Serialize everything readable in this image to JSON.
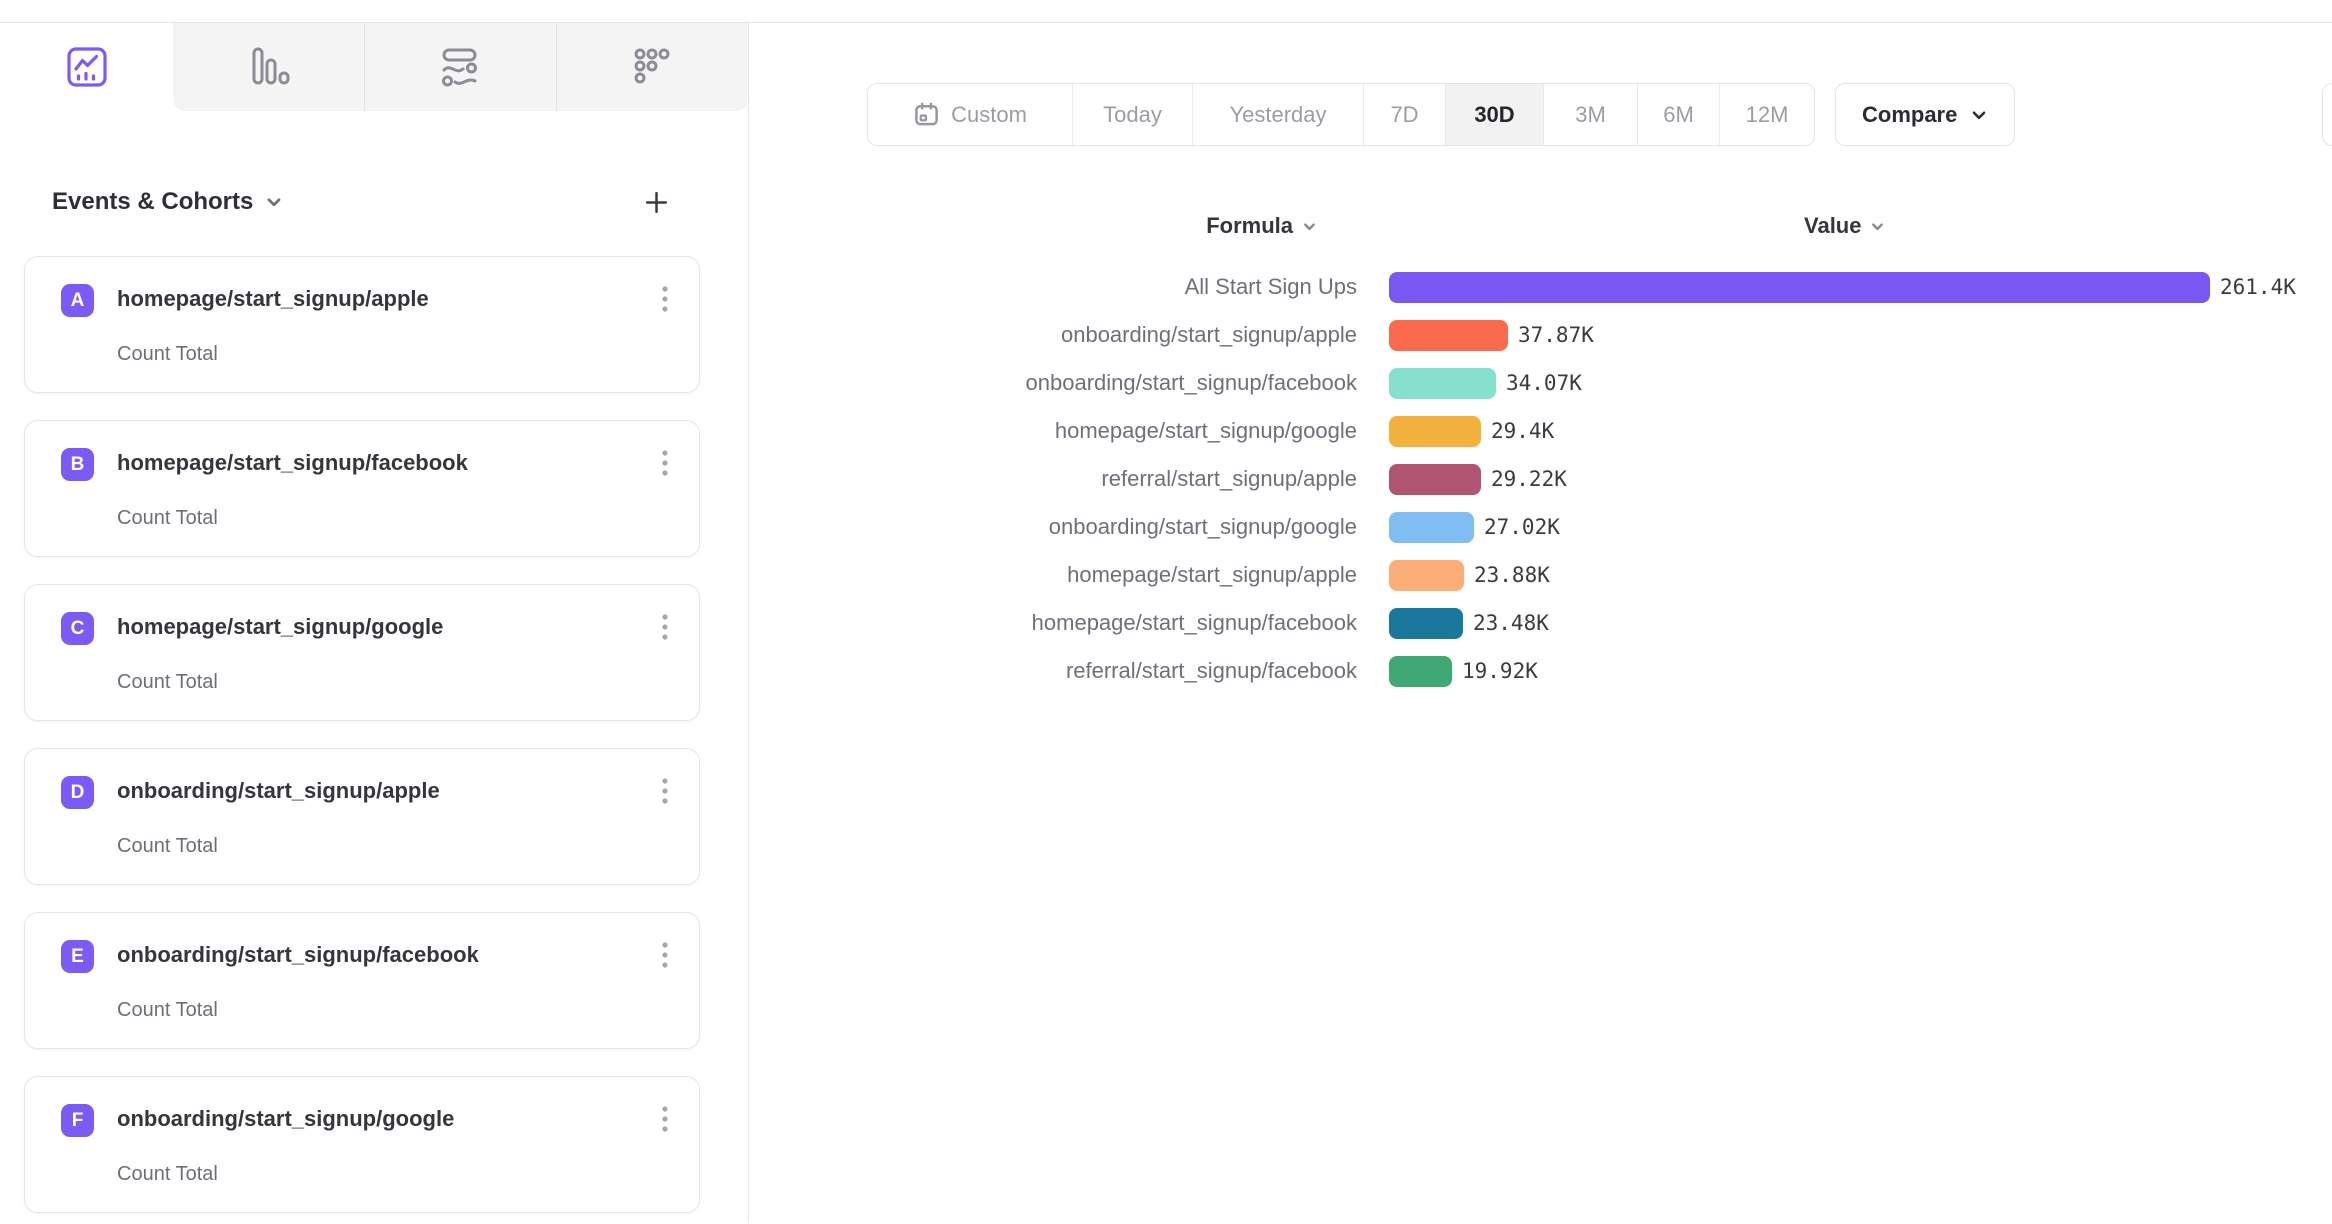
{
  "theme": {
    "accent": "#7B5AF5",
    "border": "#E6E6E9",
    "tab_strip_bg": "#F4F4F5",
    "active_segment_bg": "#F2F2F3",
    "muted_text": "#9C9CA4",
    "label_text": "#6F6F7A",
    "dark_text": "#2B2B33"
  },
  "icons": {
    "tab_icons": [
      "line-chart-icon",
      "bar-chart-icon",
      "flows-icon",
      "data-points-icon"
    ],
    "other_icons": [
      "chevron-down-icon",
      "plus-icon",
      "kebab-menu-icon",
      "calendar-icon"
    ]
  },
  "sidebar": {
    "title": "Events & Cohorts",
    "events": [
      {
        "letter": "A",
        "name": "homepage/start_signup/apple",
        "metric": "Count Total"
      },
      {
        "letter": "B",
        "name": "homepage/start_signup/facebook",
        "metric": "Count Total"
      },
      {
        "letter": "C",
        "name": "homepage/start_signup/google",
        "metric": "Count Total"
      },
      {
        "letter": "D",
        "name": "onboarding/start_signup/apple",
        "metric": "Count Total"
      },
      {
        "letter": "E",
        "name": "onboarding/start_signup/facebook",
        "metric": "Count Total"
      },
      {
        "letter": "F",
        "name": "onboarding/start_signup/google",
        "metric": "Count Total"
      }
    ]
  },
  "toolbar": {
    "date_ranges": [
      {
        "label": "Custom",
        "has_calendar_icon": true
      },
      {
        "label": "Today"
      },
      {
        "label": "Yesterday"
      },
      {
        "label": "7D"
      },
      {
        "label": "30D",
        "active": true
      },
      {
        "label": "3M"
      },
      {
        "label": "6M"
      },
      {
        "label": "12M"
      }
    ],
    "selected_range": "30D",
    "compare_label": "Compare"
  },
  "chart": {
    "formula_header": "Formula",
    "value_header": "Value"
  },
  "chart_data": {
    "type": "bar",
    "orientation": "horizontal",
    "unit": "K",
    "max_value": 261.4,
    "legend": "none",
    "grid": false,
    "categories": [
      "All Start Sign Ups",
      "onboarding/start_signup/apple",
      "onboarding/start_signup/facebook",
      "homepage/start_signup/google",
      "referral/start_signup/apple",
      "onboarding/start_signup/google",
      "homepage/start_signup/apple",
      "homepage/start_signup/facebook",
      "referral/start_signup/facebook"
    ],
    "values": [
      261.4,
      37.87,
      34.07,
      29.4,
      29.22,
      27.02,
      23.88,
      23.48,
      19.92
    ],
    "rows": [
      {
        "label": "All Start Sign Ups",
        "value_num": 261.4,
        "value": "261.4K",
        "color": "#7857F2"
      },
      {
        "label": "onboarding/start_signup/apple",
        "value_num": 37.87,
        "value": "37.87K",
        "color": "#FA6B4E"
      },
      {
        "label": "onboarding/start_signup/facebook",
        "value_num": 34.07,
        "value": "34.07K",
        "color": "#85E0CD"
      },
      {
        "label": "homepage/start_signup/google",
        "value_num": 29.4,
        "value": "29.4K",
        "color": "#F1B13C"
      },
      {
        "label": "referral/start_signup/apple",
        "value_num": 29.22,
        "value": "29.22K",
        "color": "#AF5471"
      },
      {
        "label": "onboarding/start_signup/google",
        "value_num": 27.02,
        "value": "27.02K",
        "color": "#7FBDF3"
      },
      {
        "label": "homepage/start_signup/apple",
        "value_num": 23.88,
        "value": "23.88K",
        "color": "#FCAE79"
      },
      {
        "label": "homepage/start_signup/facebook",
        "value_num": 23.48,
        "value": "23.48K",
        "color": "#19789B"
      },
      {
        "label": "referral/start_signup/facebook",
        "value_num": 19.92,
        "value": "19.92K",
        "color": "#3FA874"
      }
    ]
  }
}
